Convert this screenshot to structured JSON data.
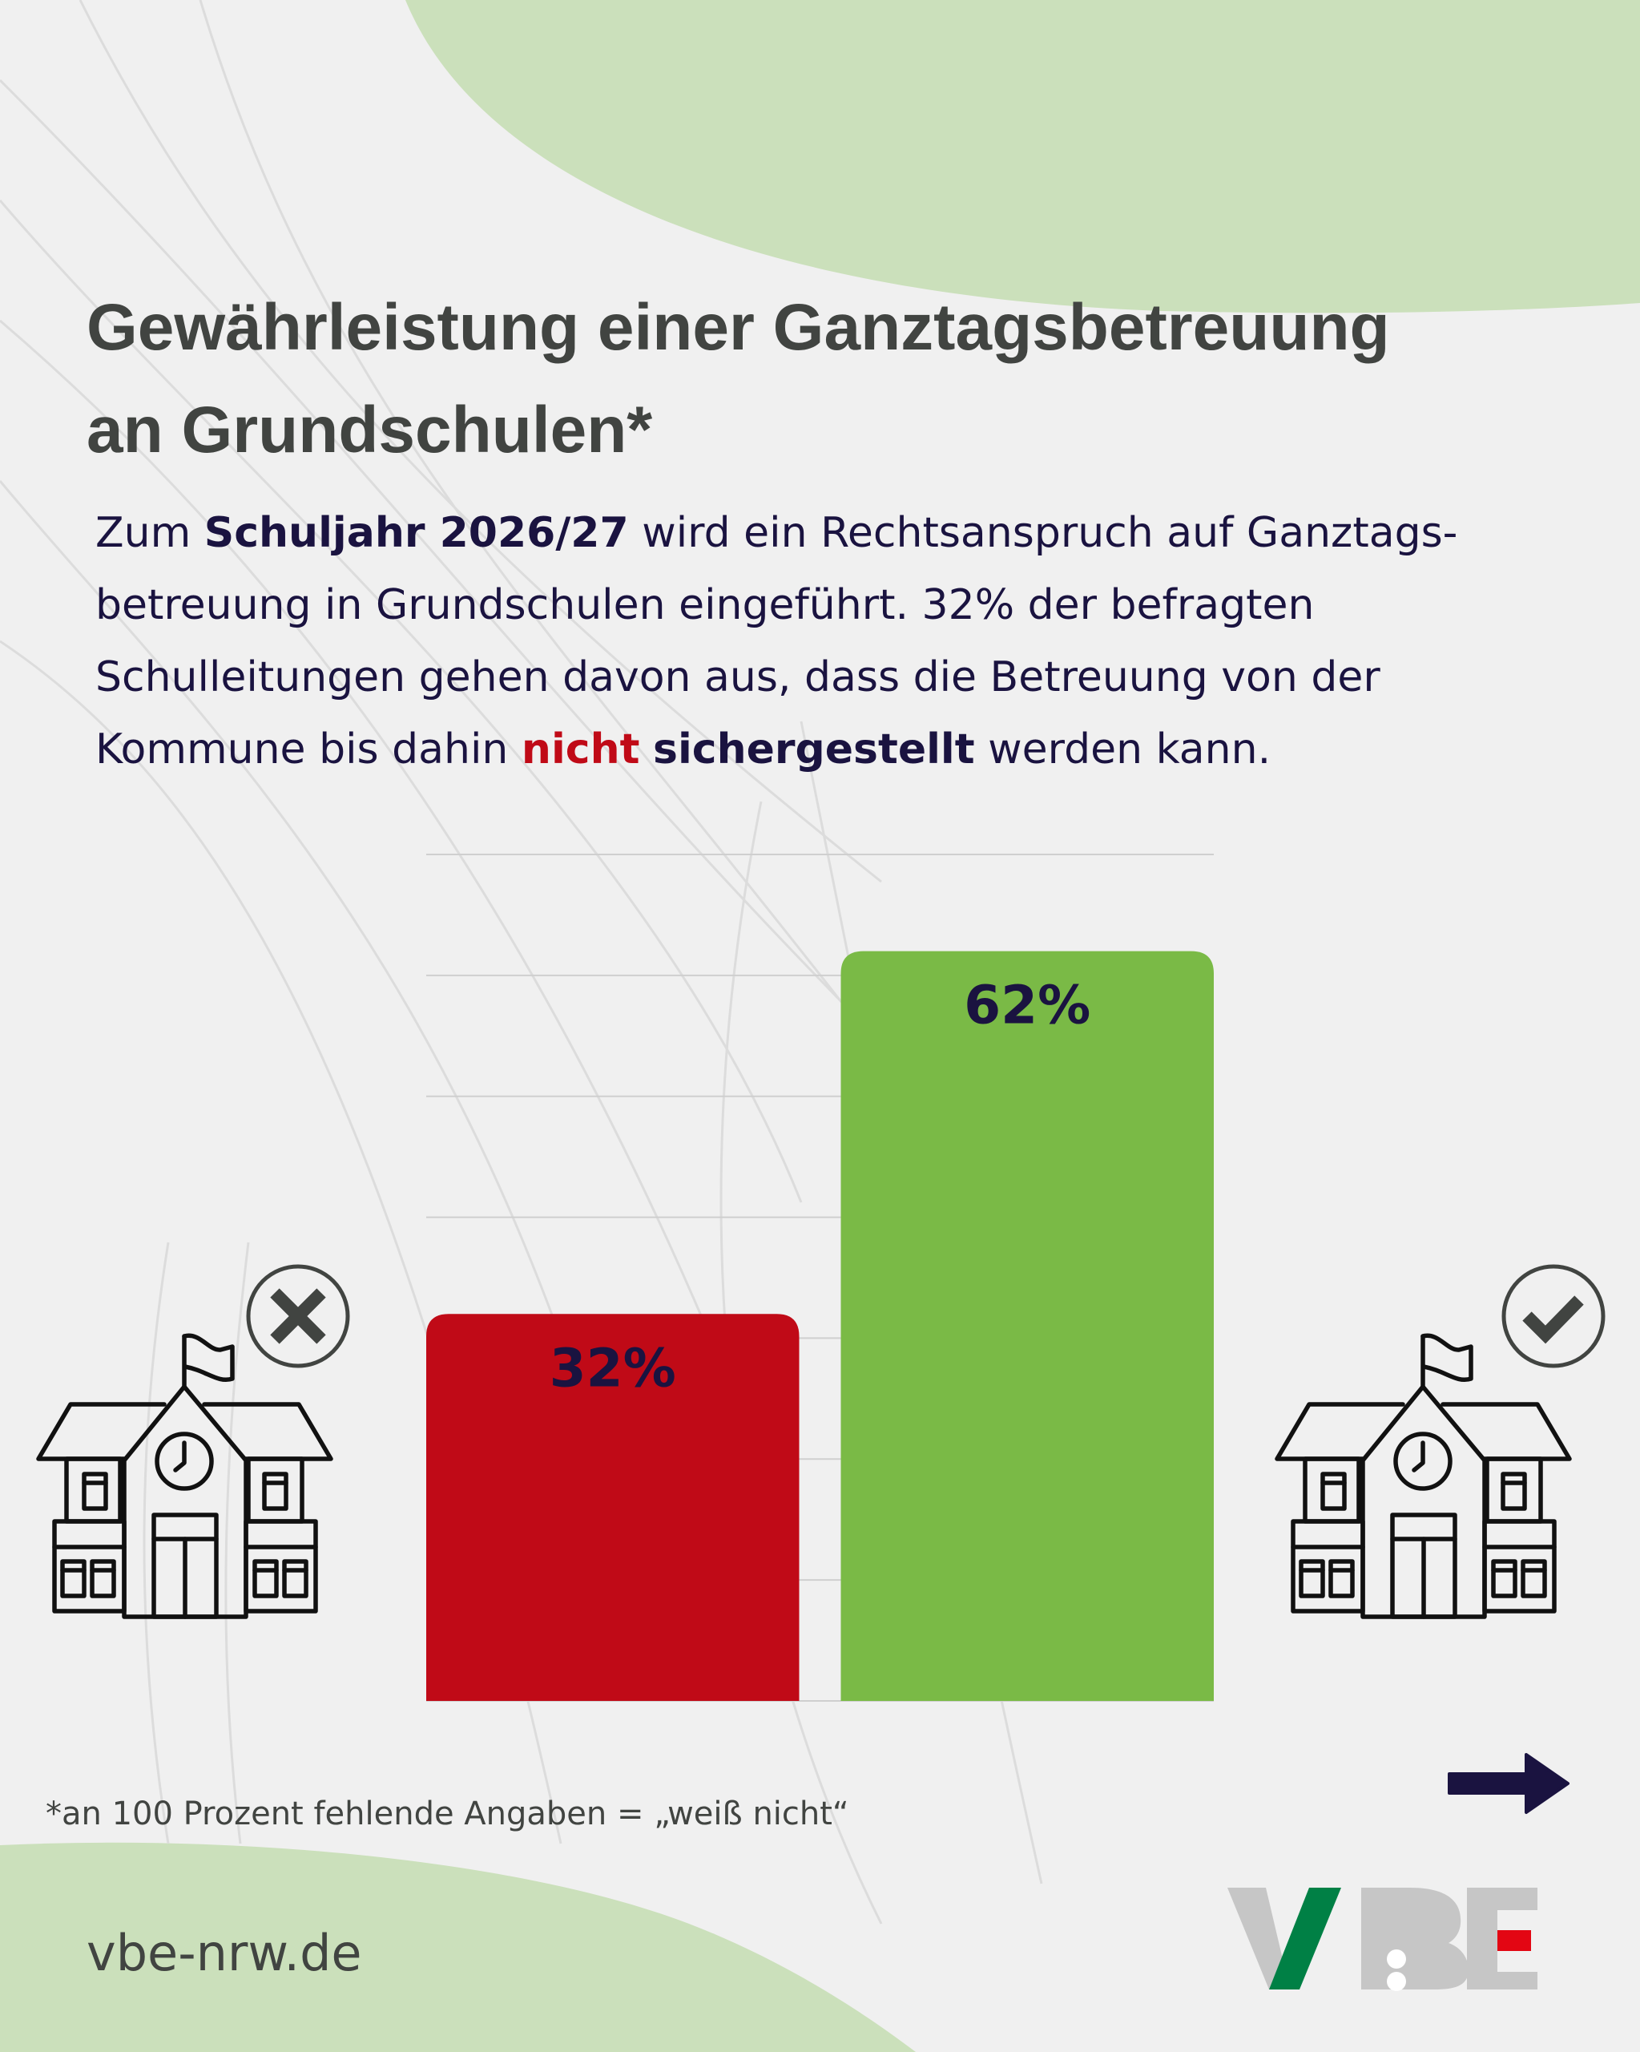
{
  "title": {
    "line1": "Gewährleistung einer Ganztagsbetreuung",
    "line2": "an Grundschulen*"
  },
  "intro": {
    "l1_a": "Zum ",
    "l1_b": "Schuljahr 2026/27",
    "l1_c": " wird ein Rechtsanspruch auf Ganztags-",
    "l2": "betreuung in Grundschulen eingeführt. 32% der befragten",
    "l3": "Schulleitungen gehen davon aus, dass die Betreuung von der",
    "l4_a": "Kommune bis dahin ",
    "l4_b": "nicht",
    "l4_c": " ",
    "l4_d": "sichergestellt",
    "l4_e": " werden kann."
  },
  "chart_data": {
    "type": "bar",
    "categories": [
      "nicht sichergestellt",
      "sichergestellt"
    ],
    "values": [
      32,
      62
    ],
    "data_labels": [
      "32%",
      "62%"
    ],
    "colors": [
      "#c00a17",
      "#7aba46"
    ],
    "ylim": [
      0,
      70
    ],
    "grid_step": 10,
    "grid": true,
    "title": "",
    "xlabel": "",
    "ylabel": ""
  },
  "icons": {
    "left": "school-with-x-icon",
    "right": "school-with-check-icon",
    "next": "arrow-right-icon"
  },
  "footnote": "*an 100 Prozent fehlende Angaben = „weiß nicht“",
  "website": "vbe-nrw.de",
  "logo": {
    "text": "VBE",
    "colors": {
      "gray": "#c6c6c6",
      "green": "#008045",
      "red": "#e30613"
    }
  },
  "colors": {
    "background": "#f0f0f0",
    "blob": "#cbe0bb",
    "title": "#414441",
    "text": "#1a1340"
  }
}
